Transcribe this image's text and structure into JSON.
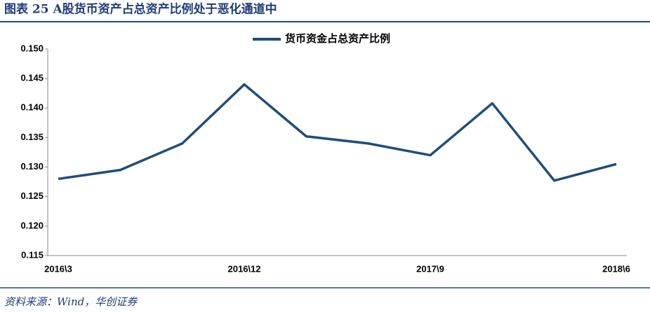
{
  "header": {
    "title": "图表 25   A股货币资产占总资产比例处于恶化通道中"
  },
  "footer": {
    "source": "资料来源：Wind，华创证券"
  },
  "chart_data": {
    "type": "line",
    "categories": [
      "2016\\3",
      null,
      null,
      "2016\\12",
      null,
      null,
      "2017\\9",
      null,
      null,
      "2018\\6"
    ],
    "series": [
      {
        "name": "货币资金占总资产比例",
        "color": "#1f4e79",
        "values": [
          0.128,
          0.1295,
          0.134,
          0.144,
          0.1352,
          0.134,
          0.132,
          0.1408,
          0.1277,
          0.1305
        ]
      }
    ],
    "ylim": [
      0.115,
      0.15
    ],
    "yticks": [
      0.115,
      {
        "value": 0.12,
        "label": "0.120"
      },
      0.125,
      {
        "value": 0.13,
        "label": "0.130"
      },
      0.135,
      {
        "value": 0.14,
        "label": "0.140"
      },
      0.145,
      {
        "value": 0.15,
        "label": "0.150"
      }
    ],
    "legend": "top"
  }
}
